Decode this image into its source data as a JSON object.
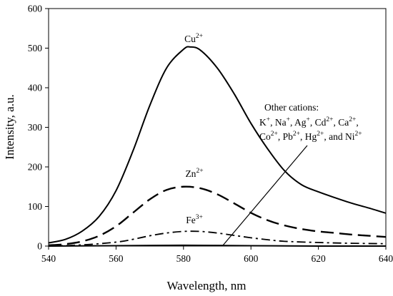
{
  "chart_data": {
    "type": "line",
    "xlabel": "Wavelength, nm",
    "ylabel": "Intensity, a.u.",
    "xlim": [
      540,
      640
    ],
    "ylim": [
      0,
      600
    ],
    "xticks": [
      540,
      560,
      580,
      600,
      620,
      640
    ],
    "yticks": [
      0,
      100,
      200,
      300,
      400,
      500,
      600
    ],
    "grid": false,
    "legend": "none",
    "series": [
      {
        "name": "Cu2+",
        "style": "solid",
        "x": [
          540,
          545,
          550,
          555,
          560,
          565,
          570,
          575,
          580,
          582,
          585,
          590,
          595,
          600,
          605,
          610,
          615,
          620,
          625,
          630,
          635,
          640
        ],
        "y": [
          8,
          17,
          38,
          75,
          140,
          240,
          355,
          450,
          497,
          503,
          495,
          450,
          385,
          310,
          245,
          190,
          155,
          137,
          122,
          108,
          96,
          83
        ]
      },
      {
        "name": "Zn2+",
        "style": "dashed",
        "x": [
          540,
          545,
          550,
          555,
          560,
          565,
          570,
          575,
          580,
          585,
          590,
          595,
          600,
          605,
          610,
          615,
          620,
          625,
          630,
          635,
          640
        ],
        "y": [
          2,
          5,
          12,
          26,
          50,
          84,
          118,
          142,
          150,
          146,
          131,
          108,
          84,
          65,
          52,
          43,
          37,
          33,
          29,
          26,
          23
        ]
      },
      {
        "name": "Fe3+",
        "style": "dash-dot",
        "x": [
          540,
          550,
          560,
          565,
          570,
          575,
          580,
          585,
          590,
          595,
          600,
          605,
          610,
          620,
          630,
          640
        ],
        "y": [
          0,
          3,
          10,
          17,
          26,
          33,
          37,
          37,
          33,
          27,
          21,
          16,
          12,
          9,
          7,
          6
        ]
      },
      {
        "name": "Other cations",
        "style": "solid",
        "x": [
          540,
          560,
          580,
          600,
          620,
          640
        ],
        "y": [
          0,
          1,
          2,
          1,
          0,
          0
        ]
      }
    ],
    "annotations": {
      "cu": {
        "base": "Cu",
        "sup": "2+"
      },
      "zn": {
        "base": "Zn",
        "sup": "2+"
      },
      "fe": {
        "base": "Fe",
        "sup": "3+"
      },
      "others": {
        "title": "Other cations:",
        "line2": [
          {
            "base": "K",
            "sup": "+"
          },
          {
            "base": ", Na",
            "sup": "+"
          },
          {
            "base": ", Ag",
            "sup": "+"
          },
          {
            "base": ", Cd",
            "sup": "2+"
          },
          {
            "base": ", Ca",
            "sup": "2+"
          },
          {
            "base": ",",
            "sup": ""
          }
        ],
        "line3": [
          {
            "base": "Co",
            "sup": "2+"
          },
          {
            "base": ", Pb",
            "sup": "2+"
          },
          {
            "base": ", Hg",
            "sup": "2+"
          },
          {
            "base": ", and Ni",
            "sup": "2+"
          }
        ]
      }
    }
  }
}
